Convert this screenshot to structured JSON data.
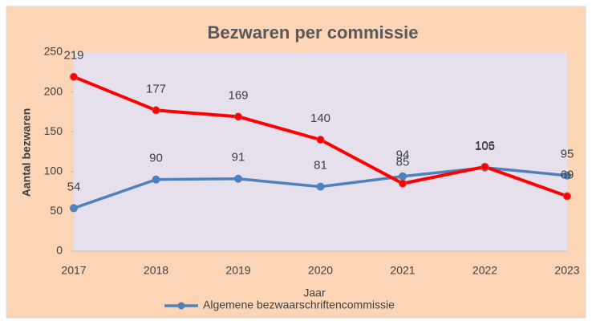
{
  "chart_data": {
    "type": "line",
    "title": "Bezwaren per commissie",
    "x_label": "Jaar",
    "y_label": "Aantal bezwaren",
    "categories": [
      "2017",
      "2018",
      "2019",
      "2020",
      "2021",
      "2022",
      "2023"
    ],
    "series": [
      {
        "name": "Algemene bezwaarschriftencommissie",
        "color": "#4f81bd",
        "values": [
          54,
          90,
          91,
          81,
          94,
          105,
          95
        ]
      },
      {
        "color": "#ff0000",
        "values": [
          219,
          177,
          169,
          140,
          85,
          106,
          69
        ]
      }
    ],
    "ylim": [
      0,
      250
    ],
    "yticks": [
      0,
      50,
      100,
      150,
      200,
      250
    ]
  }
}
